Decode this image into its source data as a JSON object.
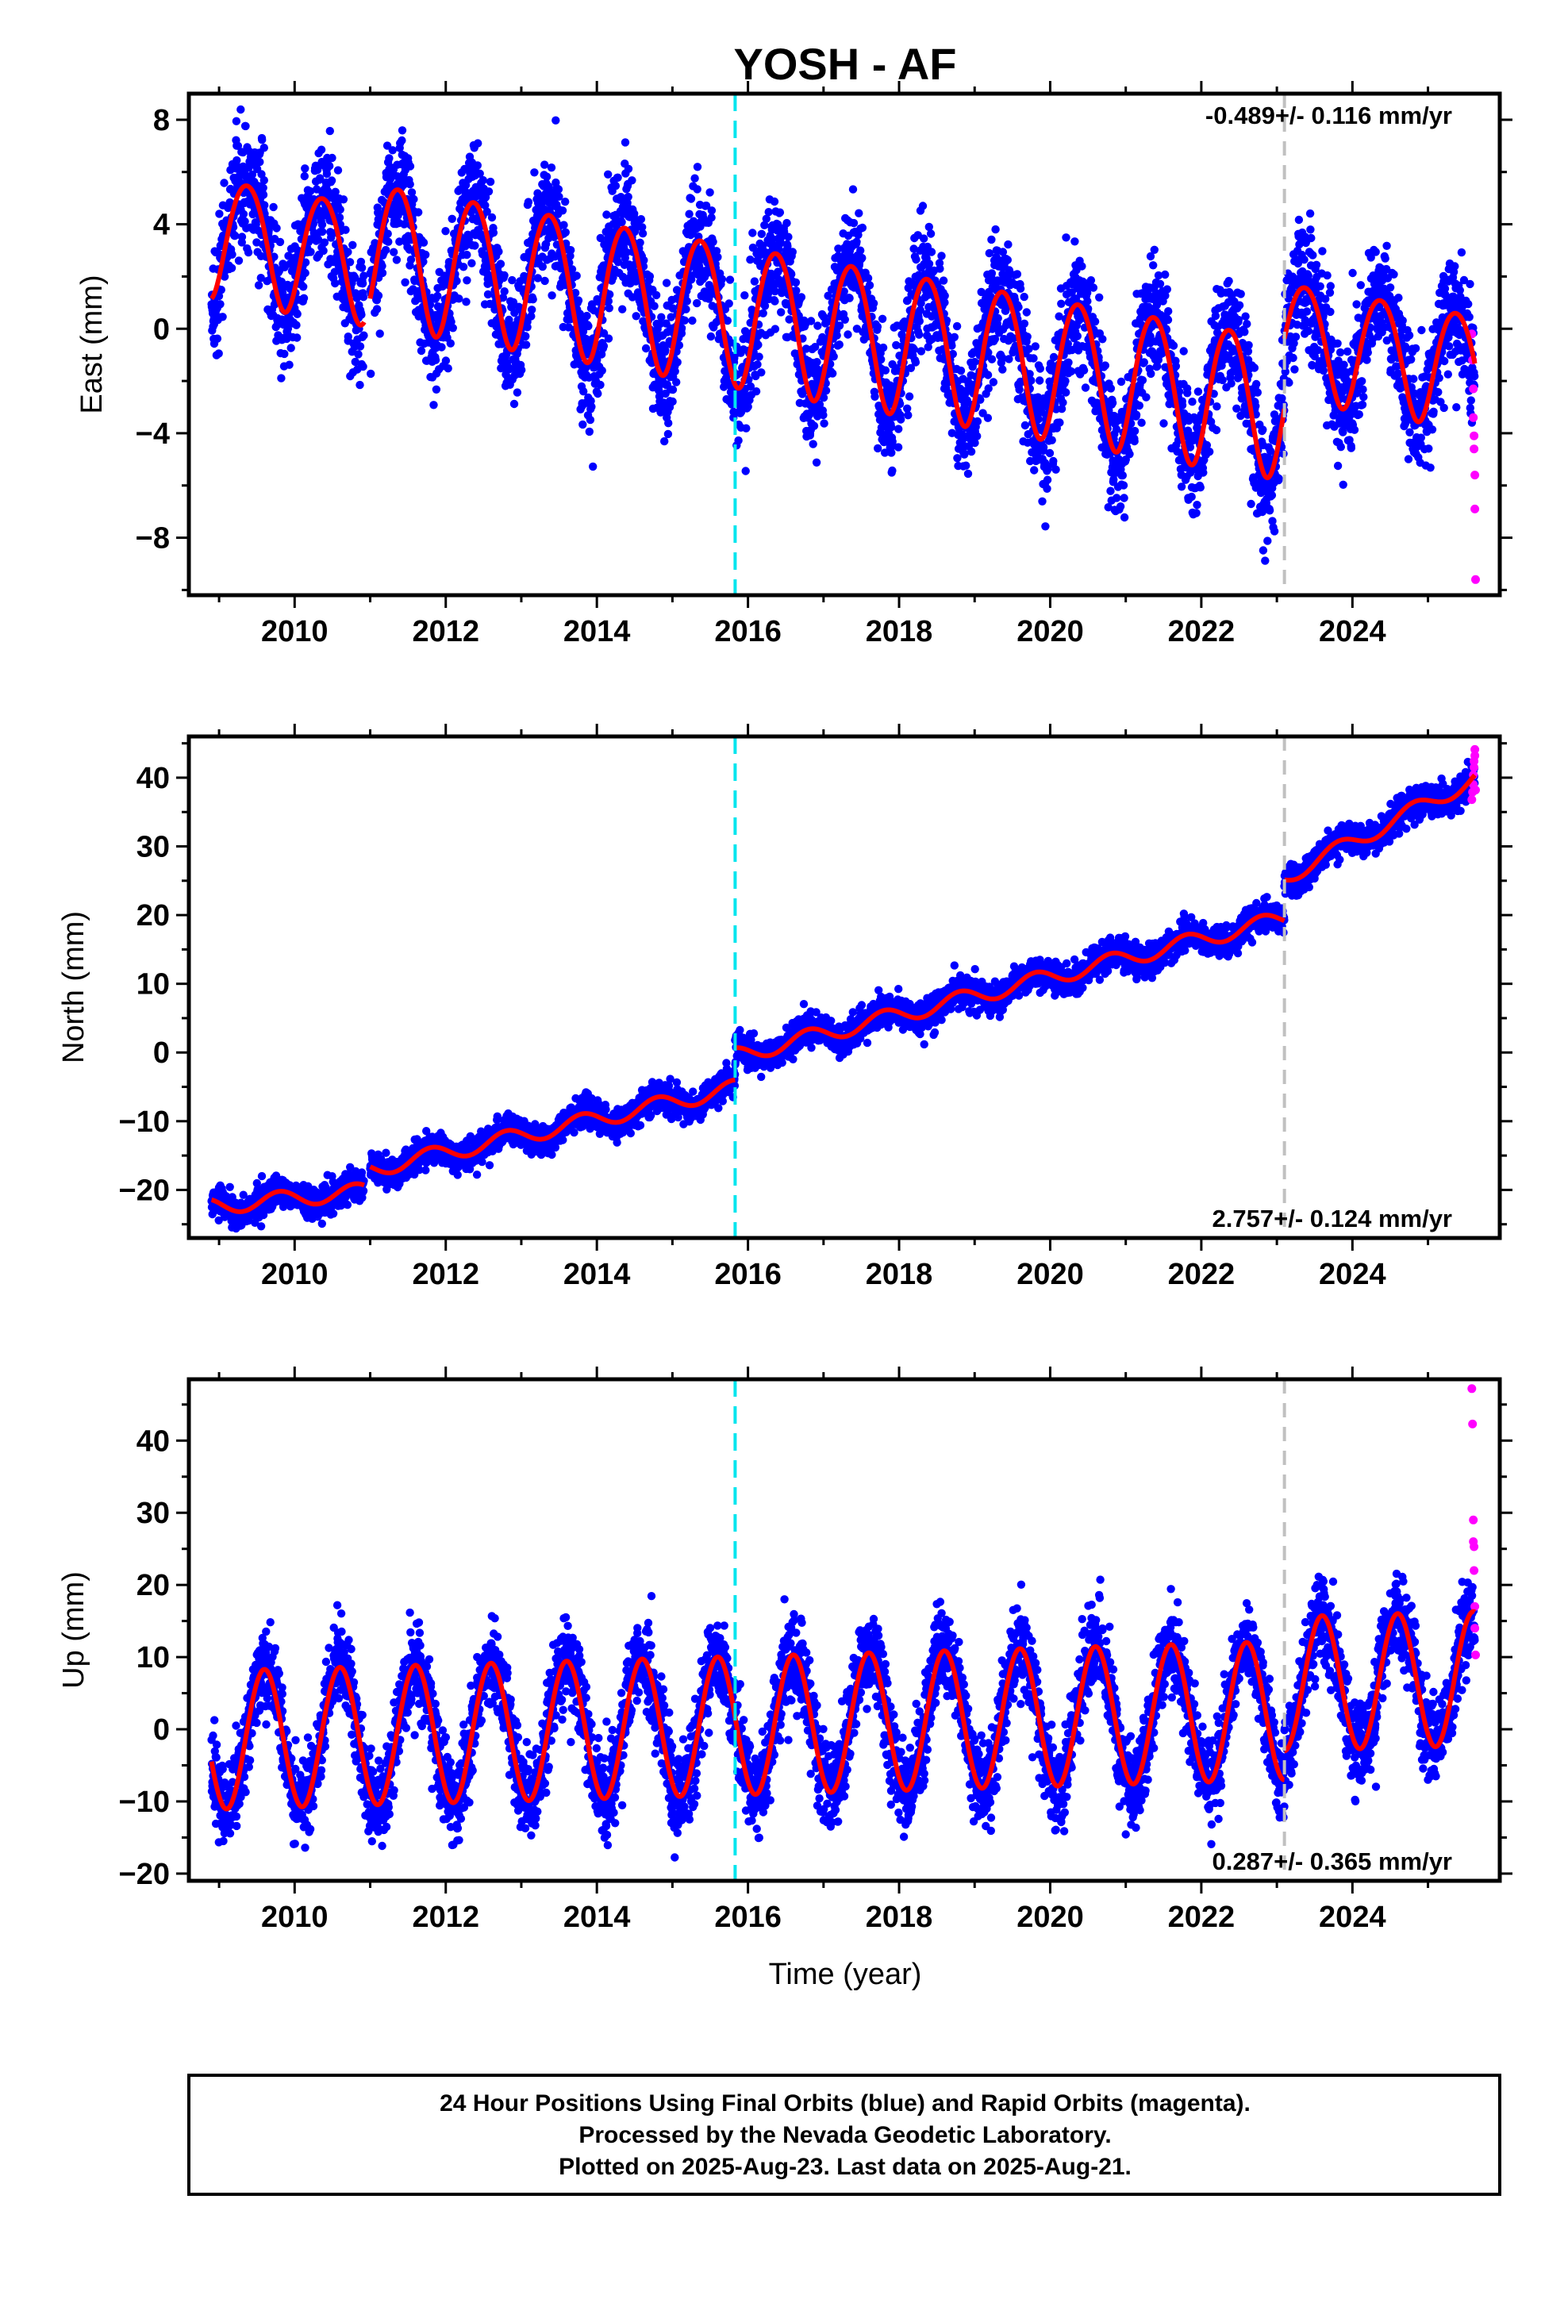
{
  "title": "YOSH - AF",
  "xlabel": "Time (year)",
  "colors": {
    "final": "#0000ff",
    "rapid": "#ff00ff",
    "model": "#ff0000",
    "antenna_change": "#00e5ee",
    "earthquake": "#c0c0c0"
  },
  "footer": [
    "24 Hour Positions Using Final Orbits (blue) and Rapid Orbits (magenta).",
    "Processed by the Nevada Geodetic Laboratory.",
    "Plotted on 2025-Aug-23. Last data on 2025-Aug-21."
  ],
  "chart_data": [
    {
      "type": "scatter",
      "id": "east",
      "ylabel": "East (mm)",
      "rate_text": "-0.489+/- 0.116 mm/yr",
      "xlim": [
        2008.6,
        2025.95
      ],
      "ylim": [
        -10.2,
        9.0
      ],
      "x_ticks": [
        2010,
        2012,
        2014,
        2016,
        2018,
        2020,
        2022,
        2024
      ],
      "y_ticks": [
        -8,
        -4,
        0,
        4,
        8
      ],
      "y_tick_labels": [
        "−8",
        "−4",
        "0",
        "4",
        "8"
      ],
      "event_lines": [
        {
          "x": 2015.83,
          "style": "antenna_change"
        },
        {
          "x": 2023.1,
          "style": "earthquake"
        }
      ],
      "model_segments": [
        {
          "start": 2008.9,
          "end": 2010.92,
          "intercept": 3.6,
          "rate": -0.489,
          "annual_amp": 2.3,
          "annual_phase": 0.12,
          "semi_amp": 0.2
        },
        {
          "start": 2011.0,
          "end": 2023.1,
          "intercept": 3.0,
          "rate": -0.489,
          "annual_amp": 2.7,
          "annual_phase": 0.12,
          "semi_amp": 0.2
        },
        {
          "start": 2023.1,
          "end": 2025.62,
          "intercept": -0.3,
          "rate": -0.489,
          "annual_amp": 2.2,
          "annual_phase": 0.12,
          "semi_amp": 0.2
        }
      ],
      "noise_sd": 1.15,
      "rapid_points": [
        [
          2025.58,
          -0.2
        ],
        [
          2025.59,
          -1.2
        ],
        [
          2025.6,
          -2.3
        ],
        [
          2025.6,
          -3.4
        ],
        [
          2025.61,
          -4.1
        ],
        [
          2025.61,
          -4.6
        ],
        [
          2025.62,
          -5.6
        ],
        [
          2025.62,
          -6.9
        ],
        [
          2025.63,
          -9.6
        ]
      ]
    },
    {
      "type": "scatter",
      "id": "north",
      "ylabel": "North (mm)",
      "rate_text": "2.757+/- 0.124 mm/yr",
      "xlim": [
        2008.6,
        2025.95
      ],
      "ylim": [
        -27.0,
        46.0
      ],
      "x_ticks": [
        2010,
        2012,
        2014,
        2016,
        2018,
        2020,
        2022,
        2024
      ],
      "y_ticks": [
        -20,
        -10,
        0,
        10,
        20,
        30,
        40
      ],
      "y_tick_labels": [
        "−20",
        "−10",
        "0",
        "10",
        "20",
        "30",
        "40"
      ],
      "event_lines": [
        {
          "x": 2015.83,
          "style": "antenna_change"
        },
        {
          "x": 2023.1,
          "style": "earthquake"
        }
      ],
      "model_segments": [
        {
          "start": 2008.9,
          "end": 2010.92,
          "intercept": -22.4,
          "rate": 1.1,
          "annual_amp": 1.2,
          "annual_phase": 0.55,
          "semi_amp": 0.0
        },
        {
          "start": 2011.0,
          "end": 2015.83,
          "intercept": -17.0,
          "rate": 2.45,
          "annual_amp": 1.2,
          "annual_phase": 0.55,
          "semi_amp": 0.0
        },
        {
          "start": 2015.83,
          "end": 2023.1,
          "intercept": -0.5,
          "rate": 2.757,
          "annual_amp": 1.2,
          "annual_phase": 0.55,
          "semi_amp": 0.0
        },
        {
          "start": 2023.1,
          "end": 2025.62,
          "intercept": 25.5,
          "rate": 5.7,
          "annual_amp": 1.2,
          "annual_phase": 0.55,
          "semi_amp": 0.0
        }
      ],
      "noise_sd": 1.1,
      "rapid_points": [
        [
          2025.58,
          36.8
        ],
        [
          2025.59,
          37.9
        ],
        [
          2025.6,
          39.0
        ],
        [
          2025.6,
          40.4
        ],
        [
          2025.61,
          41.5
        ],
        [
          2025.61,
          42.4
        ],
        [
          2025.62,
          43.2
        ],
        [
          2025.62,
          44.1
        ],
        [
          2025.63,
          38.2
        ]
      ]
    },
    {
      "type": "scatter",
      "id": "up",
      "ylabel": "Up (mm)",
      "rate_text": "0.287+/- 0.365 mm/yr",
      "xlim": [
        2008.6,
        2025.95
      ],
      "ylim": [
        -21.0,
        48.5
      ],
      "x_ticks": [
        2010,
        2012,
        2014,
        2016,
        2018,
        2020,
        2022,
        2024
      ],
      "y_ticks": [
        -20,
        -10,
        0,
        10,
        20,
        30,
        40
      ],
      "y_tick_labels": [
        "−20",
        "−10",
        "0",
        "10",
        "20",
        "30",
        "40"
      ],
      "event_lines": [
        {
          "x": 2015.83,
          "style": "antenna_change"
        },
        {
          "x": 2023.1,
          "style": "earthquake"
        }
      ],
      "model_segments": [
        {
          "start": 2008.9,
          "end": 2023.1,
          "intercept": -1.5,
          "rate": 0.287,
          "annual_amp": 9.6,
          "annual_phase": 0.35,
          "semi_amp": 0.0
        },
        {
          "start": 2023.1,
          "end": 2025.62,
          "intercept": 6.3,
          "rate": 0.287,
          "annual_amp": 9.3,
          "annual_phase": 0.35,
          "semi_amp": 0.0
        }
      ],
      "noise_sd": 3.0,
      "rapid_points": [
        [
          2025.58,
          47.2
        ],
        [
          2025.59,
          42.3
        ],
        [
          2025.6,
          29.0
        ],
        [
          2025.6,
          26.0
        ],
        [
          2025.61,
          25.3
        ],
        [
          2025.61,
          22.0
        ],
        [
          2025.62,
          17.0
        ],
        [
          2025.62,
          14.0
        ],
        [
          2025.63,
          10.3
        ]
      ]
    }
  ]
}
